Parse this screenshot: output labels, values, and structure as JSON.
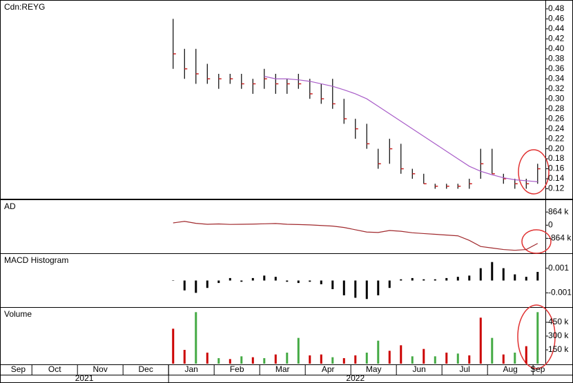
{
  "chart_data": [
    {
      "type": "ohlc",
      "title": "Cdn:REYG",
      "x": [
        4.1,
        4.35,
        4.6,
        4.85,
        5.1,
        5.35,
        5.6,
        5.85,
        6.1,
        6.35,
        6.6,
        6.85,
        7.1,
        7.35,
        7.6,
        7.85,
        8.1,
        8.35,
        8.6,
        8.85,
        9.1,
        9.35,
        9.6,
        9.85,
        10.1,
        10.35,
        10.6,
        10.85,
        11.1,
        11.35,
        11.6,
        11.85,
        12.1
      ],
      "high": [
        0.46,
        0.4,
        0.4,
        0.37,
        0.35,
        0.35,
        0.35,
        0.34,
        0.36,
        0.35,
        0.34,
        0.35,
        0.34,
        0.33,
        0.34,
        0.3,
        0.26,
        0.25,
        0.2,
        0.22,
        0.21,
        0.16,
        0.15,
        0.13,
        0.13,
        0.13,
        0.14,
        0.2,
        0.2,
        0.15,
        0.14,
        0.14,
        0.17
      ],
      "low": [
        0.36,
        0.34,
        0.33,
        0.33,
        0.32,
        0.33,
        0.32,
        0.31,
        0.32,
        0.31,
        0.31,
        0.32,
        0.3,
        0.29,
        0.28,
        0.25,
        0.22,
        0.2,
        0.16,
        0.17,
        0.15,
        0.14,
        0.13,
        0.12,
        0.12,
        0.12,
        0.12,
        0.14,
        0.15,
        0.13,
        0.12,
        0.12,
        0.13
      ],
      "close": [
        0.39,
        0.36,
        0.35,
        0.34,
        0.34,
        0.34,
        0.33,
        0.33,
        0.34,
        0.33,
        0.33,
        0.33,
        0.31,
        0.3,
        0.29,
        0.26,
        0.24,
        0.21,
        0.17,
        0.2,
        0.16,
        0.15,
        0.13,
        0.125,
        0.125,
        0.125,
        0.13,
        0.17,
        0.15,
        0.14,
        0.13,
        0.13,
        0.16
      ],
      "color": "#000000",
      "close_color": "#cc2222",
      "ma": {
        "color": "#a85cc8",
        "values": [
          null,
          null,
          null,
          null,
          null,
          null,
          null,
          null,
          0.345,
          0.34,
          0.34,
          0.338,
          0.335,
          0.33,
          0.325,
          0.318,
          0.31,
          0.3,
          0.285,
          0.27,
          0.255,
          0.24,
          0.225,
          0.21,
          0.195,
          0.18,
          0.165,
          0.155,
          0.148,
          0.142,
          0.138,
          0.136,
          0.134
        ]
      },
      "xlim": [
        0.3,
        12.27
      ],
      "ylim": [
        0.1,
        0.495
      ],
      "yticks": [
        0.12,
        0.14,
        0.16,
        0.18,
        {
          "value": 0.2,
          "label": "0.20"
        },
        0.22,
        0.24,
        0.26,
        0.28,
        {
          "value": 0.3,
          "label": "0.30"
        },
        0.32,
        0.34,
        0.36,
        0.38,
        {
          "value": 0.4,
          "label": "0.40"
        },
        0.42,
        0.44,
        0.46,
        0.48
      ]
    },
    {
      "type": "line",
      "title": "AD",
      "color": "#a0282c",
      "x": [
        4.1,
        4.35,
        4.6,
        4.85,
        5.1,
        5.35,
        5.6,
        5.85,
        6.1,
        6.35,
        6.6,
        6.85,
        7.1,
        7.35,
        7.6,
        7.85,
        8.1,
        8.35,
        8.6,
        8.85,
        9.1,
        9.35,
        9.6,
        9.85,
        10.1,
        10.35,
        10.6,
        10.85,
        11.1,
        11.35,
        11.6,
        11.85,
        12.1
      ],
      "values": [
        150000,
        250000,
        120000,
        60000,
        80000,
        50000,
        60000,
        70000,
        90000,
        110000,
        60000,
        40000,
        20000,
        -20000,
        -60000,
        -150000,
        -300000,
        -450000,
        -480000,
        -350000,
        -400000,
        -500000,
        -550000,
        -600000,
        -650000,
        -700000,
        -1000000,
        -1400000,
        -1500000,
        -1600000,
        -1650000,
        -1600000,
        -1200000
      ],
      "xlim": [
        0.3,
        12.27
      ],
      "ylim": [
        -1800000,
        1600000
      ],
      "yticks": [
        {
          "value": 864000,
          "label": "864 k"
        },
        0,
        {
          "value": -864000,
          "label": "-864 k"
        }
      ]
    },
    {
      "type": "bar",
      "title": "MACD Histogram",
      "color": "#000000",
      "x": [
        4.1,
        4.35,
        4.6,
        4.85,
        5.1,
        5.35,
        5.6,
        5.85,
        6.1,
        6.35,
        6.6,
        6.85,
        7.1,
        7.35,
        7.6,
        7.85,
        8.1,
        8.35,
        8.6,
        8.85,
        9.1,
        9.35,
        9.6,
        9.85,
        10.1,
        10.35,
        10.6,
        10.85,
        11.1,
        11.35,
        11.6,
        11.85,
        12.1
      ],
      "values": [
        0,
        -0.0008,
        -0.001,
        -0.0006,
        -0.0002,
        0.0002,
        -0.0001,
        0.0002,
        0.0004,
        0.0003,
        -0.0001,
        -0.0002,
        -0.0001,
        -0.0003,
        -0.0007,
        -0.0012,
        -0.0014,
        -0.0015,
        -0.0012,
        -0.0006,
        0.0001,
        0.0002,
        0.0001,
        0.0001,
        0.0002,
        0.0003,
        0.0004,
        0.001,
        0.0015,
        0.001,
        0.0005,
        0.0003,
        0.0007
      ],
      "xlim": [
        0.3,
        12.27
      ],
      "ylim": [
        -0.0021,
        0.0021
      ],
      "yticks": [
        0.001,
        -0.001
      ]
    },
    {
      "type": "bar",
      "title": "Volume",
      "x": [
        4.1,
        4.35,
        4.6,
        4.85,
        5.1,
        5.35,
        5.6,
        5.85,
        6.1,
        6.35,
        6.6,
        6.85,
        7.1,
        7.35,
        7.6,
        7.85,
        8.1,
        8.35,
        8.6,
        8.85,
        9.1,
        9.35,
        9.6,
        9.85,
        10.1,
        10.35,
        10.6,
        10.85,
        11.1,
        11.35,
        11.6,
        11.85,
        12.1
      ],
      "values": [
        380000,
        150000,
        560000,
        120000,
        60000,
        50000,
        80000,
        70000,
        60000,
        100000,
        120000,
        280000,
        90000,
        100000,
        70000,
        60000,
        90000,
        120000,
        250000,
        140000,
        200000,
        80000,
        160000,
        80000,
        120000,
        110000,
        90000,
        500000,
        280000,
        100000,
        120000,
        190000,
        560000
      ],
      "colors": [
        "#cc0000",
        "#cc0000",
        "#44aa44",
        "#cc0000",
        "#44aa44",
        "#cc0000",
        "#44aa44",
        "#cc0000",
        "#44aa44",
        "#cc0000",
        "#44aa44",
        "#44aa44",
        "#cc0000",
        "#cc0000",
        "#44aa44",
        "#cc0000",
        "#cc0000",
        "#44aa44",
        "#44aa44",
        "#cc0000",
        "#cc0000",
        "#44aa44",
        "#cc0000",
        "#44aa44",
        "#cc0000",
        "#44aa44",
        "#cc0000",
        "#cc0000",
        "#44aa44",
        "#cc0000",
        "#44aa44",
        "#cc0000",
        "#44aa44"
      ],
      "xlim": [
        0.3,
        12.27
      ],
      "ylim": [
        0,
        600000
      ],
      "yticks": [
        {
          "value": 150000,
          "label": "150 k"
        },
        {
          "value": 300000,
          "label": "300 k"
        },
        {
          "value": 450000,
          "label": "450 k"
        }
      ],
      "xticks": [
        {
          "value": 0.7,
          "label": "Sep"
        },
        {
          "value": 1.5,
          "label": "Oct"
        },
        {
          "value": 2.5,
          "label": "Nov"
        },
        {
          "value": 3.5,
          "label": "Dec"
        },
        {
          "value": 4.5,
          "label": "Jan"
        },
        {
          "value": 5.5,
          "label": "Feb"
        },
        {
          "value": 6.5,
          "label": "Mar"
        },
        {
          "value": 7.5,
          "label": "Apr"
        },
        {
          "value": 8.5,
          "label": "May"
        },
        {
          "value": 9.5,
          "label": "Jun"
        },
        {
          "value": 10.5,
          "label": "Jul"
        },
        {
          "value": 11.5,
          "label": "Aug"
        },
        {
          "value": 12.1,
          "label": "Sep"
        }
      ],
      "year_ticks": [
        {
          "value": 2.15,
          "label": "2021"
        },
        {
          "value": 8.1,
          "label": "2022"
        }
      ]
    }
  ]
}
